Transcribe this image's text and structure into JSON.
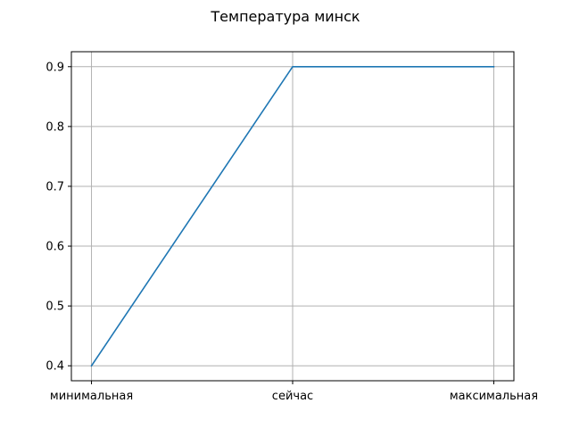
{
  "chart_data": {
    "type": "line",
    "title": "Температура минск",
    "xlabel": "",
    "ylabel": "",
    "categories": [
      "минимальная",
      "сейчас",
      "максимальная"
    ],
    "series": [
      {
        "values": [
          0.4,
          0.9,
          0.9
        ],
        "color": "#1f77b4"
      }
    ],
    "yticks": [
      "0.4",
      "0.5",
      "0.6",
      "0.7",
      "0.8",
      "0.9"
    ],
    "ylim": [
      0.375,
      0.925
    ],
    "grid": true
  }
}
